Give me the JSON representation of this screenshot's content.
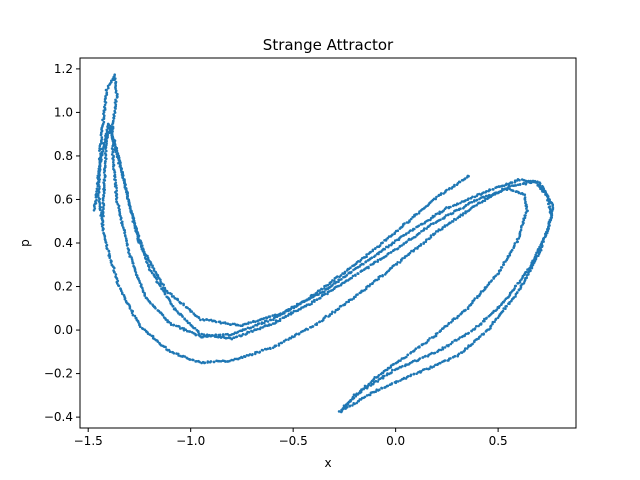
{
  "chart_data": {
    "type": "scatter",
    "title": "Strange Attractor",
    "xlabel": "x",
    "ylabel": "p",
    "xlim": [
      -1.54,
      0.88
    ],
    "ylim": [
      -0.45,
      1.25
    ],
    "xticks": [
      -1.5,
      -1.0,
      -0.5,
      0.0,
      0.5
    ],
    "xtick_labels": [
      "−1.5",
      "−1.0",
      "−0.5",
      "0.0",
      "0.5"
    ],
    "yticks": [
      -0.4,
      -0.2,
      0.0,
      0.2,
      0.4,
      0.6,
      0.8,
      1.0,
      1.2
    ],
    "ytick_labels": [
      "−0.4",
      "−0.2",
      "0.0",
      "0.2",
      "0.4",
      "0.6",
      "0.8",
      "1.0",
      "1.2"
    ],
    "grid": false,
    "marker_color": "#1f77b4",
    "series": [
      {
        "name": "",
        "bands": [
          [
            [
              0.36,
              0.71
            ],
            [
              0.2,
              0.61
            ],
            [
              0.0,
              0.45
            ],
            [
              -0.2,
              0.3
            ],
            [
              -0.4,
              0.16
            ],
            [
              -0.6,
              0.05
            ],
            [
              -0.8,
              -0.02
            ],
            [
              -0.95,
              -0.03
            ],
            [
              -1.1,
              0.03
            ],
            [
              -1.22,
              0.15
            ],
            [
              -1.3,
              0.35
            ],
            [
              -1.36,
              0.6
            ],
            [
              -1.38,
              0.8
            ],
            [
              -1.38,
              0.95
            ],
            [
              -1.36,
              1.08
            ],
            [
              -1.37,
              1.17
            ],
            [
              -1.41,
              1.1
            ],
            [
              -1.44,
              0.85
            ],
            [
              -1.45,
              0.62
            ],
            [
              -1.42,
              0.42
            ],
            [
              -1.35,
              0.2
            ],
            [
              -1.25,
              0.02
            ],
            [
              -1.1,
              -0.1
            ],
            [
              -0.95,
              -0.15
            ],
            [
              -0.8,
              -0.14
            ],
            [
              -0.6,
              -0.08
            ],
            [
              -0.4,
              0.02
            ],
            [
              -0.2,
              0.15
            ],
            [
              0.0,
              0.3
            ],
            [
              0.2,
              0.45
            ],
            [
              0.4,
              0.58
            ],
            [
              0.55,
              0.66
            ],
            [
              0.68,
              0.68
            ],
            [
              0.74,
              0.62
            ],
            [
              0.76,
              0.52
            ],
            [
              0.7,
              0.35
            ],
            [
              0.6,
              0.18
            ],
            [
              0.45,
              0.0
            ],
            [
              0.3,
              -0.12
            ],
            [
              0.1,
              -0.2
            ],
            [
              -0.1,
              -0.28
            ],
            [
              -0.28,
              -0.38
            ]
          ],
          [
            [
              -1.43,
              0.5
            ],
            [
              -1.42,
              0.7
            ],
            [
              -1.41,
              0.88
            ],
            [
              -1.39,
              0.93
            ],
            [
              -1.34,
              0.75
            ],
            [
              -1.28,
              0.5
            ],
            [
              -1.2,
              0.28
            ],
            [
              -1.08,
              0.1
            ],
            [
              -0.95,
              -0.02
            ],
            [
              -0.8,
              -0.04
            ],
            [
              -0.6,
              0.03
            ],
            [
              -0.4,
              0.13
            ],
            [
              -0.2,
              0.25
            ],
            [
              0.0,
              0.37
            ],
            [
              0.2,
              0.5
            ],
            [
              0.4,
              0.6
            ],
            [
              0.55,
              0.65
            ],
            [
              0.63,
              0.62
            ],
            [
              0.64,
              0.55
            ],
            [
              0.6,
              0.42
            ],
            [
              0.5,
              0.26
            ],
            [
              0.35,
              0.1
            ],
            [
              0.2,
              -0.02
            ],
            [
              0.05,
              -0.12
            ],
            [
              -0.1,
              -0.22
            ],
            [
              -0.26,
              -0.36
            ]
          ],
          [
            [
              -1.47,
              0.55
            ],
            [
              -1.44,
              0.78
            ],
            [
              -1.4,
              0.95
            ],
            [
              -1.33,
              0.7
            ],
            [
              -1.25,
              0.4
            ],
            [
              -1.12,
              0.18
            ],
            [
              -0.95,
              0.05
            ],
            [
              -0.75,
              0.02
            ],
            [
              -0.55,
              0.08
            ],
            [
              -0.35,
              0.18
            ],
            [
              -0.15,
              0.31
            ],
            [
              0.05,
              0.44
            ],
            [
              0.25,
              0.56
            ],
            [
              0.45,
              0.64
            ],
            [
              0.6,
              0.69
            ],
            [
              0.7,
              0.68
            ],
            [
              0.77,
              0.57
            ],
            [
              0.74,
              0.45
            ],
            [
              0.65,
              0.28
            ],
            [
              0.52,
              0.12
            ],
            [
              0.38,
              0.0
            ],
            [
              0.2,
              -0.1
            ],
            [
              0.0,
              -0.18
            ],
            [
              -0.2,
              -0.3
            ],
            [
              -0.27,
              -0.38
            ]
          ]
        ]
      }
    ]
  }
}
